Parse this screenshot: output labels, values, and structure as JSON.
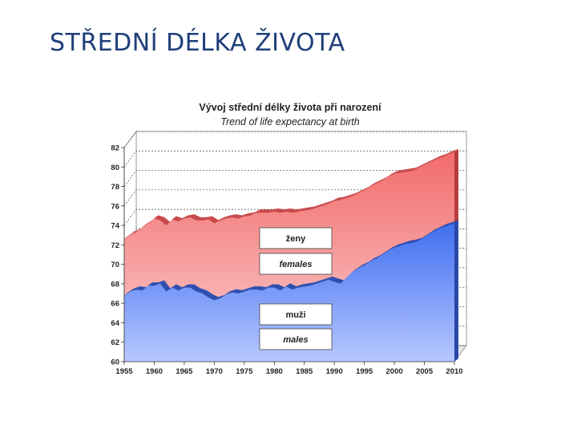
{
  "slide": {
    "title": "STŘEDNÍ DÉLKA ŽIVOTA"
  },
  "colors": {
    "title": "#1f3e7a",
    "females_fill": "#f26b6b",
    "females_fill_light": "#fbd0d0",
    "males_fill": "#3f6ef0",
    "males_fill_light": "#b8c8ff",
    "grid": "#444444"
  },
  "chart_data": {
    "type": "area",
    "title": "Vývoj střední délky života při narození",
    "subtitle": "Trend of life expectancy at birth",
    "x": [
      1955,
      1956,
      1957,
      1958,
      1959,
      1960,
      1961,
      1962,
      1963,
      1964,
      1965,
      1966,
      1967,
      1968,
      1969,
      1970,
      1971,
      1972,
      1973,
      1974,
      1975,
      1976,
      1977,
      1978,
      1979,
      1980,
      1981,
      1982,
      1983,
      1984,
      1985,
      1986,
      1987,
      1988,
      1989,
      1990,
      1991,
      1992,
      1993,
      1994,
      1995,
      1996,
      1997,
      1998,
      1999,
      2000,
      2001,
      2002,
      2003,
      2004,
      2005,
      2006,
      2007,
      2008,
      2009,
      2010
    ],
    "series": [
      {
        "name": "ženy",
        "name_en": "females",
        "values": [
          72.6,
          73.0,
          73.3,
          73.8,
          74.2,
          74.7,
          74.5,
          74.0,
          74.6,
          74.4,
          74.7,
          74.8,
          74.5,
          74.5,
          74.6,
          74.2,
          74.5,
          74.7,
          74.8,
          74.7,
          74.9,
          75.0,
          75.3,
          75.3,
          75.3,
          75.4,
          75.3,
          75.4,
          75.3,
          75.4,
          75.5,
          75.6,
          75.8,
          76.0,
          76.2,
          76.5,
          76.6,
          76.8,
          77.0,
          77.3,
          77.6,
          78.0,
          78.3,
          78.6,
          79.0,
          79.3,
          79.4,
          79.5,
          79.6,
          79.9,
          80.2,
          80.5,
          80.8,
          81.0,
          81.3,
          81.5
        ]
      },
      {
        "name": "muži",
        "name_en": "males",
        "values": [
          66.8,
          67.2,
          67.4,
          67.3,
          67.8,
          67.8,
          68.0,
          67.2,
          67.6,
          67.3,
          67.6,
          67.6,
          67.2,
          67.0,
          66.6,
          66.3,
          66.5,
          66.9,
          67.1,
          67.0,
          67.2,
          67.4,
          67.4,
          67.3,
          67.6,
          67.6,
          67.3,
          67.7,
          67.4,
          67.6,
          67.7,
          67.8,
          68.0,
          68.2,
          68.4,
          68.2,
          68.0,
          68.6,
          69.2,
          69.6,
          69.9,
          70.3,
          70.6,
          71.0,
          71.4,
          71.7,
          71.9,
          72.1,
          72.2,
          72.4,
          72.8,
          73.2,
          73.5,
          73.8,
          74.0,
          74.2
        ]
      }
    ],
    "x_ticks": [
      1955,
      1960,
      1965,
      1970,
      1975,
      1980,
      1985,
      1990,
      1995,
      2000,
      2005,
      2010
    ],
    "y_ticks": [
      60,
      62,
      64,
      66,
      68,
      70,
      72,
      74,
      76,
      78,
      80,
      82
    ],
    "ylim": [
      60,
      82
    ],
    "xlim": [
      1955,
      2010
    ],
    "legend": {
      "females_cz": "ženy",
      "females_en": "females",
      "males_cz": "muži",
      "males_en": "males",
      "placement": "inside-center"
    },
    "grid": "horizontal-dashed",
    "style": "3d"
  }
}
